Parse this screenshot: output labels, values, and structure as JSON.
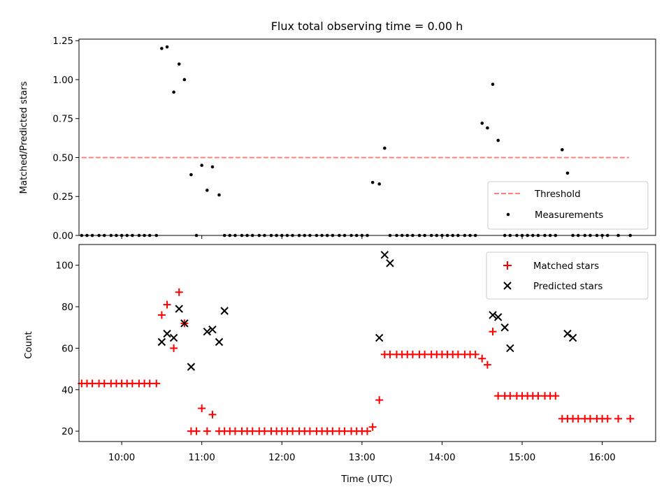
{
  "chart_data": [
    {
      "type": "scatter",
      "title": "Flux total observing time = 0.00 h",
      "xlabel": "",
      "ylabel": "Matched/Predicted stars",
      "xlim": [
        "09:28",
        "16:40"
      ],
      "ylim": [
        0,
        1.26
      ],
      "yticks": [
        0.0,
        0.25,
        0.5,
        0.75,
        1.0,
        1.25
      ],
      "ytick_labels": [
        "0.00",
        "0.25",
        "0.50",
        "0.75",
        "1.00",
        "1.25"
      ],
      "legend_position": "lower-right",
      "series": [
        {
          "name": "Threshold",
          "kind": "line",
          "style": "dashed",
          "color": "#ff8080",
          "x": [
            "09:30",
            "16:20"
          ],
          "y": [
            0.5,
            0.5
          ]
        },
        {
          "name": "Measurements",
          "kind": "scatter",
          "marker": "dot",
          "color": "#000000",
          "x": [
            "09:30",
            "09:34",
            "09:38",
            "09:43",
            "09:47",
            "09:52",
            "09:56",
            "10:00",
            "10:04",
            "10:08",
            "10:13",
            "10:17",
            "10:21",
            "10:26",
            "10:30",
            "10:34",
            "10:39",
            "10:43",
            "10:47",
            "10:52",
            "10:56",
            "11:00",
            "11:04",
            "11:08",
            "11:13",
            "11:17",
            "11:21",
            "11:25",
            "11:30",
            "11:34",
            "11:38",
            "11:43",
            "11:47",
            "11:52",
            "11:56",
            "12:00",
            "12:04",
            "12:08",
            "12:13",
            "12:17",
            "12:21",
            "12:26",
            "12:30",
            "12:34",
            "12:38",
            "12:43",
            "12:47",
            "12:52",
            "12:56",
            "13:00",
            "13:04",
            "13:08",
            "13:13",
            "13:17",
            "13:21",
            "13:26",
            "13:30",
            "13:34",
            "13:38",
            "13:43",
            "13:47",
            "13:52",
            "13:56",
            "14:00",
            "14:04",
            "14:08",
            "14:12",
            "14:17",
            "14:21",
            "14:25",
            "14:30",
            "14:34",
            "14:38",
            "14:42",
            "14:47",
            "14:51",
            "14:56",
            "15:00",
            "15:04",
            "15:08",
            "15:12",
            "15:17",
            "15:21",
            "15:25",
            "15:30",
            "15:34",
            "15:38",
            "15:42",
            "15:47",
            "15:51",
            "15:56",
            "16:00",
            "16:04",
            "16:12",
            "16:21"
          ],
          "y": [
            0,
            0,
            0,
            0,
            0,
            0,
            0,
            0,
            0,
            0,
            0,
            0,
            0,
            0,
            1.2,
            1.21,
            0.92,
            1.1,
            1.0,
            0.39,
            0,
            0.45,
            0.29,
            0.44,
            0.26,
            0,
            0,
            0,
            0,
            0,
            0,
            0,
            0,
            0,
            0,
            0,
            0,
            0,
            0,
            0,
            0,
            0,
            0,
            0,
            0,
            0,
            0,
            0,
            0,
            0,
            0,
            0.34,
            0.33,
            0.56,
            0,
            0,
            0,
            0,
            0,
            0,
            0,
            0,
            0,
            0,
            0,
            0,
            0,
            0,
            0,
            0,
            0.72,
            0.69,
            0.97,
            0.61,
            0,
            0,
            0,
            0,
            0,
            0,
            0,
            0,
            0,
            0,
            0.55,
            0.4,
            0,
            0,
            0,
            0,
            0,
            0,
            0,
            0,
            0
          ]
        }
      ]
    },
    {
      "type": "scatter",
      "title": "",
      "xlabel": "Time (UTC)",
      "ylabel": "Count",
      "xlim": [
        "09:28",
        "16:40"
      ],
      "xticks": [
        "10:00",
        "11:00",
        "12:00",
        "13:00",
        "14:00",
        "15:00",
        "16:00"
      ],
      "ylim": [
        15,
        110
      ],
      "yticks": [
        20,
        40,
        60,
        80,
        100
      ],
      "legend_position": "upper-right",
      "series": [
        {
          "name": "Matched stars",
          "marker": "plus",
          "color": "#ff0000",
          "x": [
            "09:30",
            "09:34",
            "09:38",
            "09:43",
            "09:47",
            "09:52",
            "09:56",
            "10:00",
            "10:04",
            "10:08",
            "10:13",
            "10:17",
            "10:21",
            "10:26",
            "10:30",
            "10:34",
            "10:39",
            "10:43",
            "10:47",
            "10:52",
            "10:56",
            "11:00",
            "11:04",
            "11:08",
            "11:13",
            "11:17",
            "11:21",
            "11:25",
            "11:30",
            "11:34",
            "11:38",
            "11:43",
            "11:47",
            "11:52",
            "11:56",
            "12:00",
            "12:04",
            "12:08",
            "12:13",
            "12:17",
            "12:21",
            "12:26",
            "12:30",
            "12:34",
            "12:38",
            "12:43",
            "12:47",
            "12:52",
            "12:56",
            "13:00",
            "13:04",
            "13:08",
            "13:13",
            "13:17",
            "13:21",
            "13:26",
            "13:30",
            "13:34",
            "13:38",
            "13:43",
            "13:47",
            "13:52",
            "13:56",
            "14:00",
            "14:04",
            "14:08",
            "14:12",
            "14:17",
            "14:21",
            "14:25",
            "14:30",
            "14:34",
            "14:38",
            "14:42",
            "14:47",
            "14:51",
            "14:56",
            "15:00",
            "15:04",
            "15:08",
            "15:12",
            "15:17",
            "15:21",
            "15:25",
            "15:30",
            "15:34",
            "15:38",
            "15:42",
            "15:47",
            "15:51",
            "15:56",
            "16:00",
            "16:04",
            "16:12",
            "16:21"
          ],
          "y": [
            43,
            43,
            43,
            43,
            43,
            43,
            43,
            43,
            43,
            43,
            43,
            43,
            43,
            43,
            76,
            81,
            60,
            87,
            72,
            20,
            20,
            31,
            20,
            28,
            20,
            20,
            20,
            20,
            20,
            20,
            20,
            20,
            20,
            20,
            20,
            20,
            20,
            20,
            20,
            20,
            20,
            20,
            20,
            20,
            20,
            20,
            20,
            20,
            20,
            20,
            20,
            22,
            35,
            57,
            57,
            57,
            57,
            57,
            57,
            57,
            57,
            57,
            57,
            57,
            57,
            57,
            57,
            57,
            57,
            57,
            55,
            52,
            68,
            37,
            37,
            37,
            37,
            37,
            37,
            37,
            37,
            37,
            37,
            37,
            26,
            26,
            26,
            26,
            26,
            26,
            26,
            26,
            26,
            26,
            26
          ]
        },
        {
          "name": "Predicted stars",
          "marker": "x",
          "color": "#000000",
          "x": [
            "10:30",
            "10:34",
            "10:39",
            "10:43",
            "10:47",
            "10:52",
            "11:04",
            "11:08",
            "11:13",
            "11:17",
            "13:13",
            "13:17",
            "13:21",
            "14:38",
            "14:42",
            "14:47",
            "14:51",
            "15:34",
            "15:38"
          ],
          "y": [
            63,
            67,
            65,
            79,
            72,
            51,
            68,
            69,
            63,
            78,
            65,
            105,
            101,
            76,
            75,
            70,
            60,
            67,
            65
          ]
        }
      ]
    }
  ]
}
